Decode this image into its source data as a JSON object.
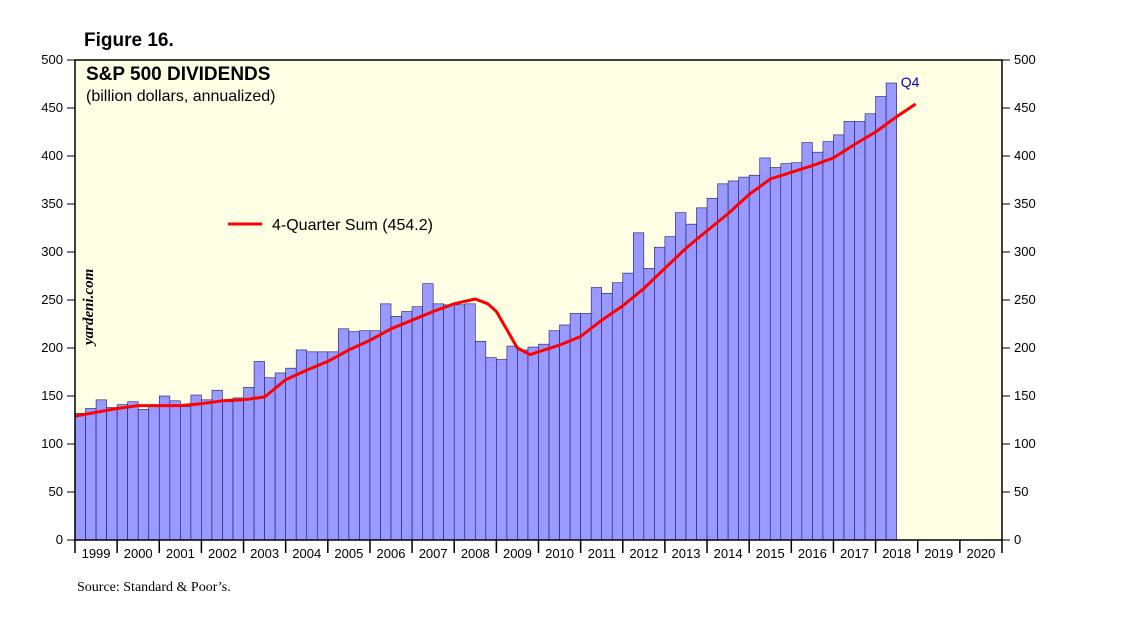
{
  "figure_label": "Figure 16.",
  "source": "Source: Standard & Poor’s.",
  "colors": {
    "plot_background": "#ffffe6",
    "bar_fill": "#9999ff",
    "bar_stroke": "#1a1a66",
    "line": "#ff0000",
    "q4_label": "#0000cc"
  },
  "chart_data": {
    "type": "bar",
    "title": "S&P 500 DIVIDENDS",
    "subtitle": "(billion dollars, annualized)",
    "watermark": "yardeni.com",
    "ylim": [
      0,
      500
    ],
    "yticks": [
      0,
      50,
      100,
      150,
      200,
      250,
      300,
      350,
      400,
      450,
      500
    ],
    "xlim": [
      1999,
      2021
    ],
    "year_labels": [
      "1999",
      "2000",
      "2001",
      "2002",
      "2003",
      "2004",
      "2005",
      "2006",
      "2007",
      "2008",
      "2009",
      "2010",
      "2011",
      "2012",
      "2013",
      "2014",
      "2015",
      "2016",
      "2017",
      "2018",
      "2019",
      "2020"
    ],
    "grid": false,
    "legend_position": "upper-left",
    "series": [
      {
        "name": "Quarterly dividends (annualized)",
        "kind": "bar",
        "start_year": 1999,
        "values": [
          132,
          137,
          146,
          138,
          141,
          144,
          136,
          139,
          150,
          145,
          139,
          151,
          146,
          156,
          144,
          148,
          159,
          186,
          169,
          174,
          179,
          198,
          196,
          196,
          196,
          220,
          217,
          218,
          218,
          246,
          233,
          238,
          243,
          267,
          246,
          245,
          245,
          246,
          207,
          190,
          188,
          202,
          198,
          201,
          204,
          218,
          224,
          236,
          236,
          263,
          257,
          268,
          278,
          320,
          283,
          305,
          316,
          341,
          329,
          346,
          356,
          371,
          374,
          378,
          380,
          398,
          388,
          392,
          393,
          414,
          404,
          415,
          422,
          436,
          436,
          444,
          462,
          476
        ]
      },
      {
        "name": "4-Quarter Sum (454.2)",
        "kind": "line",
        "points": [
          [
            1999.0,
            129
          ],
          [
            1999.5,
            133
          ],
          [
            2000.0,
            137
          ],
          [
            2000.5,
            140
          ],
          [
            2001.0,
            140
          ],
          [
            2001.5,
            140
          ],
          [
            2002.0,
            142
          ],
          [
            2002.5,
            145
          ],
          [
            2003.0,
            146
          ],
          [
            2003.5,
            149
          ],
          [
            2004.0,
            167
          ],
          [
            2004.5,
            177
          ],
          [
            2005.0,
            186
          ],
          [
            2005.5,
            198
          ],
          [
            2006.0,
            208
          ],
          [
            2006.5,
            220
          ],
          [
            2007.0,
            229
          ],
          [
            2007.5,
            238
          ],
          [
            2008.0,
            246
          ],
          [
            2008.5,
            251
          ],
          [
            2008.8,
            246
          ],
          [
            2009.0,
            238
          ],
          [
            2009.5,
            200
          ],
          [
            2009.8,
            193
          ],
          [
            2010.0,
            196
          ],
          [
            2010.5,
            203
          ],
          [
            2011.0,
            212
          ],
          [
            2011.5,
            229
          ],
          [
            2012.0,
            244
          ],
          [
            2012.5,
            262
          ],
          [
            2013.0,
            283
          ],
          [
            2013.5,
            304
          ],
          [
            2014.0,
            322
          ],
          [
            2014.5,
            340
          ],
          [
            2015.0,
            360
          ],
          [
            2015.5,
            376
          ],
          [
            2016.0,
            383
          ],
          [
            2016.5,
            390
          ],
          [
            2017.0,
            398
          ],
          [
            2017.5,
            412
          ],
          [
            2018.0,
            425
          ],
          [
            2018.5,
            441
          ],
          [
            2018.95,
            454.2
          ]
        ]
      }
    ],
    "annotations": [
      "Q4"
    ],
    "legend_label": "4-Quarter Sum (454.2)"
  }
}
